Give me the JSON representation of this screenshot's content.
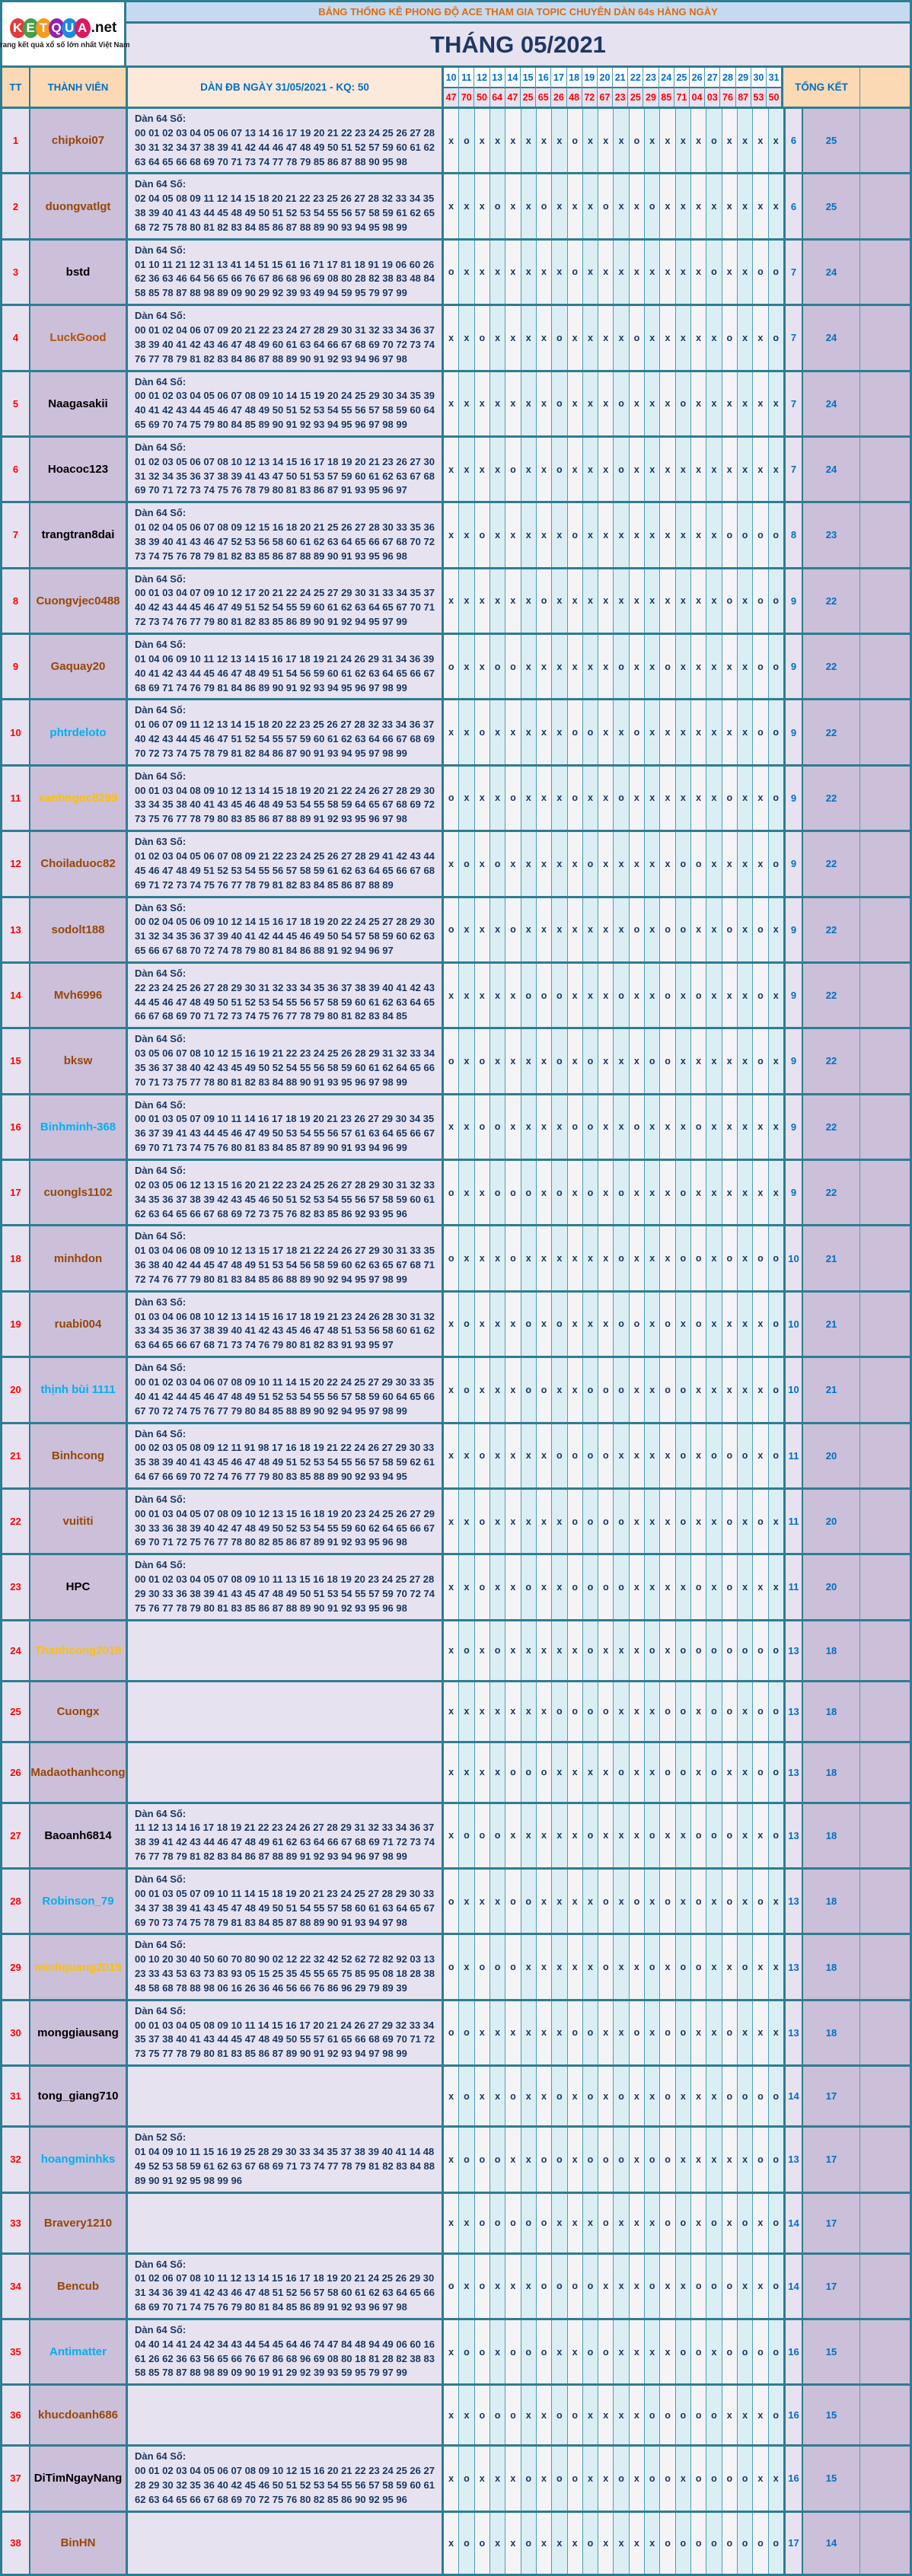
{
  "logo": {
    "letters": [
      {
        "ch": "K",
        "color": "#E23B3B"
      },
      {
        "ch": "E",
        "color": "#43A047"
      },
      {
        "ch": "T",
        "color": "#F59A23"
      },
      {
        "ch": "Q",
        "color": "#8E24AA"
      },
      {
        "ch": "U",
        "color": "#1E88E5"
      },
      {
        "ch": "A",
        "color": "#D81B60"
      }
    ],
    "suffix": ".net",
    "tagline": "Trang kết quả xổ số lớn nhất Việt Nam"
  },
  "banner": {
    "title": "BẢNG THỐNG KÊ PHONG ĐỘ ACE THAM GIA TOPIC CHUYÊN DÀN 64s HÀNG NGÀY",
    "month_title": "THÁNG 05/2021"
  },
  "table": {
    "tt_label": "TT",
    "member_label": "THÀNH VIÊN",
    "dan_header": "DÀN ĐB NGÀY 31/05/2021 - KQ: 50",
    "total_label": "TỔNG KẾT",
    "days": [
      "10",
      "11",
      "12",
      "13",
      "14",
      "15",
      "16",
      "17",
      "18",
      "19",
      "20",
      "21",
      "22",
      "23",
      "24",
      "25",
      "26",
      "27",
      "28",
      "29",
      "30",
      "31"
    ],
    "kq": [
      "47",
      "70",
      "50",
      "64",
      "47",
      "25",
      "65",
      "26",
      "48",
      "72",
      "67",
      "23",
      "25",
      "29",
      "85",
      "71",
      "04",
      "03",
      "76",
      "87",
      "53",
      "50"
    ],
    "members": [
      {
        "tt": "1",
        "name": "chipkoi07",
        "color": "#974706",
        "dan_title": "Dàn 64 Số:",
        "numbers": "00 01 02 03 04 05 06 07 13 14 16 17 19 20 21 22 23 24 25 26 27 28 30 31 32 34 37 38 39 41 42 44 46 47 48 49 50 51 52 57 59 60 61 62 63 64 65 66 68 69 70 71 73 74 77 78 79 85 86 87 88 90 95 98",
        "marks": "xoxxxxxxoxxxoxxxxoxxxx",
        "t1": "6",
        "t2": "25"
      },
      {
        "tt": "2",
        "name": "duongvatlgt",
        "color": "#974706",
        "dan_title": "Dàn 64 Số:",
        "numbers": "02 04 05 08 09 11 12 14 15 18 20 21 22 23 25 26 27 28 32 33 34 35 38 39 40 41 43 44 45 48 49 50 51 52 53 54 55 56 57 58 59 61 62 65 68 72 75 78 80 81 82 83 84 85 86 87 88 89 90 93 94 95 98 99",
        "marks": "xxxoxxoxxxoxxoxxxxxxxx",
        "t1": "6",
        "t2": "25"
      },
      {
        "tt": "3",
        "name": "bstd",
        "color": "#000000",
        "dan_title": "Dàn 64 Số:",
        "numbers": "01 10 11 21 12 31 13 41 14 51 15 61 16 71 17 81 18 91 19 06 60 26 62 36 63 46 64 56 65 66 76 67 86 68 96 69 08 80 28 82 38 83 48 84 58 85 78 87 88 98 89 09 90 29 92 39 93 49 94 59 95 79 97 99",
        "marks": "oxxxxxxxoxxxxxxxxoxxoo",
        "t1": "7",
        "t2": "24"
      },
      {
        "tt": "4",
        "name": "LuckGood",
        "color": "#B4540A",
        "dan_title": "Dàn 64 Số:",
        "numbers": "00 01 02 04 06 07 09 20 21 22 23 24 27 28 29 30 31 32 33 34 36 37 38 39 40 41 42 43 46 47 48 49 60 61 63 64 66 67 68 69 70 72 73 74 76 77 78 79 81 82 83 84 86 87 88 89 90 91 92 93 94 96 97 98",
        "marks": "xxoxxxxoxxxxoxxxxxoxxo",
        "t1": "7",
        "t2": "24"
      },
      {
        "tt": "5",
        "name": "Naagasakii",
        "color": "#000000",
        "dan_title": "Dàn 64 Số:",
        "numbers": "00 01 02 03 04 05 06 07 08 09 10 14 15 19 20 24 25 29 30 34 35 39 40 41 42 43 44 45 46 47 48 49 50 51 52 53 54 55 56 57 58 59 60 64 65 69 70 74 75 79 80 84 85 89 90 91 92 93 94 95 96 97 98 99",
        "marks": "xxxxxxxoxxxoxxxoxxxxxx",
        "t1": "7",
        "t2": "24"
      },
      {
        "tt": "6",
        "name": "Hoacoc123",
        "color": "#000000",
        "dan_title": "Dàn 64 Số:",
        "numbers": "01 02 03 05 06 07 08 10 12 13 14 15 16 17 18 19 20 21 23 26 27 30 31 32 34 35 36 37 38 39 41 43 47 50 51 53 57 59 60 61 62 63 67 68 69 70 71 72 73 74 75 76 78 79 80 81 83 86 87 91 93 95 96 97",
        "marks": "xxxxoxxoxxxoxxxxxxxxxx",
        "t1": "7",
        "t2": "24"
      },
      {
        "tt": "7",
        "name": "trangtran8dai",
        "color": "#000000",
        "dan_title": "Dàn 64 Số:",
        "numbers": "01 02 04 05 06 07 08 09 12 15 16 18 20 21 25 26 27 28 30 33 35 36 38 39 40 41 43 46 47 52 53 56 58 60 61 62 63 64 65 66 67 68 70 72 73 74 75 76 78 79 81 82 83 85 86 87 88 89 90 91 93 95 96 98",
        "marks": "xxoxxxxxoxxxxxxxxxoooo",
        "t1": "8",
        "t2": "23"
      },
      {
        "tt": "8",
        "name": "Cuongvjec0488",
        "color": "#974706",
        "dan_title": "Dàn 64 Số:",
        "numbers": "00 01 03 04 07 09 10 12 17 20 21 22 24 25 27 29 30 31 33 34 35 37 40 42 43 44 45 46 47 49 51 52 54 55 59 60 61 62 63 64 65 67 70 71 72 73 74 76 77 79 80 81 82 83 85 86 89 90 91 92 94 95 97 99",
        "marks": "xxxxxxoxxxxxxxxxxxoxoo",
        "t1": "9",
        "t2": "22"
      },
      {
        "tt": "9",
        "name": "Gaquay20",
        "color": "#974706",
        "dan_title": "Dàn 64 Số:",
        "numbers": "01 04 06 09 10 11 12 13 14 15 16 17 18 19 21 24 26 29 31 34 36 39 40 41 42 43 44 45 46 47 48 49 51 54 56 59 60 61 62 63 64 65 66 67 68 69 71 74 76 79 81 84 86 89 90 91 92 93 94 95 96 97 98 99",
        "marks": "oxxooxxxxxxoxxoxxxxxoo",
        "t1": "9",
        "t2": "22"
      },
      {
        "tt": "10",
        "name": "phtrdeloto",
        "color": "#00B0F0",
        "dan_title": "Dàn 64 Số:",
        "numbers": "01 06 07 09 11 12 13 14 15 18 20 22 23 25 26 27 28 32 33 34 36 37 40 42 43 44 45 46 47 51 52 54 55 57 59 60 61 62 63 64 66 67 68 69 70 72 73 74 75 78 79 81 82 84 86 87 90 91 93 94 95 97 98 99",
        "marks": "xxoxxxxxooxxoxxxxxxxoo",
        "t1": "9",
        "t2": "22"
      },
      {
        "tt": "11",
        "name": "xanhngoc8299",
        "color": "#FFC000",
        "dan_title": "Dàn 64 Số:",
        "numbers": "00 01 03 04 08 09 10 12 13 14 15 18 19 20 21 22 24 26 27 28 29 30 33 34 35 38 40 41 43 45 46 48 49 53 54 55 58 59 64 65 67 68 69 72 73 75 76 77 78 79 80 83 85 86 87 88 89 91 92 93 95 96 97 98",
        "marks": "oxxxoxxxoxxoxxxxxxoxxo",
        "t1": "9",
        "t2": "22"
      },
      {
        "tt": "12",
        "name": "Choiladuoc82",
        "color": "#974706",
        "dan_title": "Dàn 63 Số:",
        "numbers": "01 02 03 04 05 06 07 08 09 21 22 23 24 25 26 27 28 29 41 42 43 44 45 46 47 48 49 51 52 53 54 55 56 57 58 59 61 62 63 64 65 66 67 68 69 71 72 73 74 75 76 77 78 79 81 82 83 84 85 86 87 88 89",
        "marks": "xoxoxxxxxoxxxxxooxxxxo",
        "t1": "9",
        "t2": "22"
      },
      {
        "tt": "13",
        "name": "sodolt188",
        "color": "#974706",
        "dan_title": "Dàn 63 Số:",
        "numbers": "00 02 04 05 06 09 10 12 14 15 16 17 18 19 20 22 24 25 27 28 29 30 31 32 34 35 36 37 39 40 41 42 44 45 46 49 50 54 57 58 59 60 62 63 65 66 67 68 70 72 74 78 79 80 81 84 86 88 91 92 94 96 97",
        "marks": "oxxxoxxxxxxxoxooxxoxox",
        "t1": "9",
        "t2": "22"
      },
      {
        "tt": "14",
        "name": "Mvh6996",
        "color": "#974706",
        "dan_title": "Dàn 64 Số:",
        "numbers": "22 23 24 25 26 27 28 29 30 31 32 33 34 35 36 37 38 39 40 41 42 43 44 45 46 47 48 49 50 51 52 53 54 55 56 57 58 59 60 61 62 63 64 65 66 67 68 69 70 71 72 73 74 75 76 77 78 79 80 81 82 83 84 85",
        "marks": "xxxxxoooxxxoxxoxoxxxox",
        "t1": "9",
        "t2": "22"
      },
      {
        "tt": "15",
        "name": "bksw",
        "color": "#974706",
        "dan_title": "Dàn 64 Số:",
        "numbers": "03 05 06 07 08 10 12 15 16 19 21 22 23 24 25 26 28 29 31 32 33 34 35 36 37 38 40 42 43 45 49 50 52 54 55 56 58 59 60 61 62 64 65 66 70 71 73 75 77 78 80 81 82 83 84 88 90 91 93 95 96 97 98 99",
        "marks": "oxoxxxxoxoxxxooxxxxxox",
        "t1": "9",
        "t2": "22"
      },
      {
        "tt": "16",
        "name": "Binhminh-368",
        "color": "#00B0F0",
        "dan_title": "Dàn 64 Số:",
        "numbers": "00 01 03 05 07 09 10 11 14 16 17 18 19 20 21 23 26 27 29 30 34 35 36 37 39 41 43 44 45 46 47 49 50 53 54 55 56 57 61 63 64 65 66 67 69 70 71 73 74 75 76 80 81 83 84 85 87 89 90 91 93 94 96 99",
        "marks": "xxooxxxxooxxoxxxoxxxxx",
        "t1": "9",
        "t2": "22"
      },
      {
        "tt": "17",
        "name": "cuongls1102",
        "color": "#974706",
        "dan_title": "Dàn 64 Số:",
        "numbers": "02 03 05 06 12 13 15 16 20 21 22 23 24 25 26 27 28 29 30 31 32 33 34 35 36 37 38 39 42 43 45 46 50 51 52 53 54 55 56 57 58 59 60 61 62 63 64 65 66 67 68 69 72 73 75 76 82 83 85 86 92 93 95 96",
        "marks": "oxxoooxoxoxoxxxoxxxxxx",
        "t1": "9",
        "t2": "22"
      },
      {
        "tt": "18",
        "name": "minhdon",
        "color": "#974706",
        "dan_title": "Dàn 64 Số:",
        "numbers": "01 03 04 06 08 09 10 12 13 15 17 18 21 22 24 26 27 29 30 31 33 35 36 38 40 42 44 45 47 48 49 51 53 54 56 58 59 60 62 63 65 67 68 71 72 74 76 77 79 80 81 83 84 85 86 88 89 90 92 94 95 97 98 99",
        "marks": "oxxxoxxxxxxoxxxooxoxoo",
        "t1": "10",
        "t2": "21"
      },
      {
        "tt": "19",
        "name": "ruabi004",
        "color": "#974706",
        "dan_title": "Dàn 63 Số:",
        "numbers": "01 03 04 06 08 10 12 13 14 15 16 17 18 19 21 23 24 26 28 30 31 32 33 34 35 36 37 38 39 40 41 42 43 45 46 47 48 51 53 56 58 60 61 62 63 64 65 66 67 68 71 73 74 76 79 80 81 82 83 91 93 95 97",
        "marks": "xoxxxoxoxxxooxoxoxxxxo",
        "t1": "10",
        "t2": "21"
      },
      {
        "tt": "20",
        "name": "thịnh bùi 1111",
        "color": "#00B0F0",
        "dan_title": "Dàn 64 Số:",
        "numbers": "00 01 02 03 04 06 07 08 09 10 11 14 15 20 22 24 25 27 29 30 33 35 40 41 42 44 45 46 47 48 49 51 52 53 54 55 56 57 58 59 60 64 65 66 67 70 72 74 75 76 77 79 80 84 85 88 89 90 92 94 95 97 98 99",
        "marks": "xoxxxooxxoooxxooxxxxxo",
        "t1": "10",
        "t2": "21"
      },
      {
        "tt": "21",
        "name": "Binhcong",
        "color": "#974706",
        "dan_title": "Dàn 64 Số:",
        "numbers": "00 02 03 05 08 09 12 11 91 98 17 16 18 19 21 22 24 26 27 29 30 33 35 38 39 40 41 43 45 46 47 48 49 51 52 53 54 55 56 57 58 59 62 61 64 67 66 69 70 72 74 76 77 79 80 83 85 88 89 90 92 93 94 95",
        "marks": "xxoxxxxooooxxxxoxoooxo",
        "t1": "11",
        "t2": "20"
      },
      {
        "tt": "22",
        "name": "vuititi",
        "color": "#974706",
        "dan_title": "Dàn 64 Số:",
        "numbers": "00 01 03 04 05 07 08 09 10 12 13 15 16 18 19 20 23 24 25 26 27 29 30 33 36 38 39 40 42 47 48 49 50 52 53 54 55 59 60 62 64 65 66 67 69 70 71 72 75 76 77 78 80 82 85 86 87 89 91 92 93 95 96 98",
        "marks": "xxoxxxxxooooxxxoxxoxox",
        "t1": "11",
        "t2": "20"
      },
      {
        "tt": "23",
        "name": "HPC",
        "color": "#000000",
        "dan_title": "Dàn 64 Số:",
        "numbers": "00 01 02 03 04 05 07 08 09 10 11 13 15 16 18 19 20 23 24 25 27 28 29 30 33 36 38 39 41 43 45 47 48 49 50 51 53 54 55 57 59 70 72 74 75 76 77 78 79 80 81 83 85 86 87 88 89 90 91 92 93 95 96 98",
        "marks": "xxoxxoxxooooxxxxoxoxxx",
        "t1": "11",
        "t2": "20"
      },
      {
        "tt": "24",
        "name": "Thanhcong2018",
        "color": "#FFC000",
        "dan_title": "",
        "numbers": "",
        "marks": "xoxoxxxxxoxxxoxooooooo",
        "t1": "13",
        "t2": "18"
      },
      {
        "tt": "25",
        "name": "Cuongx",
        "color": "#974706",
        "dan_title": "",
        "numbers": "",
        "marks": "xxxxxxxooooxxxooxooxoo",
        "t1": "13",
        "t2": "18"
      },
      {
        "tt": "26",
        "name": "Madaothanhcong",
        "color": "#974706",
        "dan_title": "",
        "numbers": "",
        "marks": "xxxxoooxxxxoxxooxoxxoo",
        "t1": "13",
        "t2": "18"
      },
      {
        "tt": "27",
        "name": "Baoanh6814",
        "color": "#000000",
        "dan_title": "Dàn 64 Số:",
        "numbers": "11 12 13 14 16 17 18 19 21 22 23 24 26 27 28 29 31 32 33 34 36 37 38 39 41 42 43 44 46 47 48 49 61 62 63 64 66 67 68 69 71 72 73 74 76 77 78 79 81 82 83 84 86 87 88 89 91 92 93 94 96 97 98 99",
        "marks": "xoooxxxxxoxxxoxxoooxxo",
        "t1": "13",
        "t2": "18"
      },
      {
        "tt": "28",
        "name": "Robinson_79",
        "color": "#00B0F0",
        "dan_title": "Dàn 64 Số:",
        "numbers": "00 01 03 05 07 09 10 11 14 15 18 19 20 21 23 24 25 27 28 29 30 33 34 37 38 39 41 43 45 47 48 49 50 51 54 55 57 58 60 61 63 64 65 67 69 70 73 74 75 78 79 81 83 84 85 87 88 89 90 91 93 94 97 98",
        "marks": "oxxxooxxxxoxoxoxoxoxox",
        "t1": "13",
        "t2": "18"
      },
      {
        "tt": "29",
        "name": "minhquang2015",
        "color": "#FFC000",
        "dan_title": "Dàn 64 Số:",
        "numbers": "00 10 20 30 40 50 60 70 80 90 02 12 22 32 42 52 62 72 82 92 03 13 23 33 43 53 63 73 83 93 05 15 25 35 45 55 65 75 85 95 08 18 28 38 48 58 68 78 88 98 06 16 26 36 46 56 66 76 86 96 29 79 89 39",
        "marks": "oxoooxxxxxoxxoxooxxoxx",
        "t1": "13",
        "t2": "18"
      },
      {
        "tt": "30",
        "name": "monggiausang",
        "color": "#000000",
        "dan_title": "Dàn 64 Số:",
        "numbers": "00 01 03 04 05 08 09 10 11 14 15 16 17 20 21 24 26 27 29 32 33 34 35 37 38 40 41 43 44 45 47 48 49 50 55 57 61 65 66 68 69 70 71 72 73 75 77 78 79 80 81 83 85 86 87 89 90 91 92 93 94 97 98 99",
        "marks": "ooxxxxxxooxxoxooxxoxxx",
        "t1": "13",
        "t2": "18"
      },
      {
        "tt": "31",
        "name": "tong_giang710",
        "color": "#000000",
        "dan_title": "",
        "numbers": "",
        "marks": "xoxxoxxoxoxoxxoxxxoooo",
        "t1": "14",
        "t2": "17"
      },
      {
        "tt": "32",
        "name": "hoangminhks",
        "color": "#00B0F0",
        "dan_title": "Dàn 52 Số:",
        "numbers": "01 04 09 10 11 15 16 19 25 28 29 30 33 34 35 37 38 39 40 41 14 48 49 52 53 58 59 61 62 63 67 68 69 71 73 74 77 78 79 81 82 83 84 88 89 90 91 92 95 98 99 96",
        "marks": "xoooxxooxoooxooxxxxxoo",
        "t1": "13",
        "t2": "17"
      },
      {
        "tt": "33",
        "name": "Bravery1210",
        "color": "#974706",
        "dan_title": "",
        "numbers": "",
        "marks": "xxoooooxxxoxxxooxoxoxo",
        "t1": "14",
        "t2": "17"
      },
      {
        "tt": "34",
        "name": "Bencub",
        "color": "#974706",
        "dan_title": "Dàn 64 Số:",
        "numbers": "01 02 06 07 08 10 11 12 13 14 15 16 17 18 19 20 21 24 25 26 29 30 31 34 36 39 41 42 43 46 47 48 51 52 56 57 58 60 61 62 63 64 65 66 68 69 70 71 74 75 76 79 80 81 84 85 86 89 91 92 93 96 97 98",
        "marks": "oxoxxxooooxxxoxxoooxxo",
        "t1": "14",
        "t2": "17"
      },
      {
        "tt": "35",
        "name": "Antimatter",
        "color": "#00B0F0",
        "dan_title": "Dàn 64 Số:",
        "numbers": "04 40 14 41 24 42 34 43 44 54 45 64 46 74 47 84 48 94 49 06 60 16 61 26 62 36 63 56 65 66 76 67 86 68 96 69 08 80 18 81 28 82 38 83 58 85 78 87 88 98 89 09 90 19 91 29 92 39 93 59 95 79 97 99",
        "marks": "xooxoooxxooxxxxooxoooo",
        "t1": "16",
        "t2": "15"
      },
      {
        "tt": "36",
        "name": "khucdoanh686",
        "color": "#974706",
        "dan_title": "",
        "numbers": "",
        "marks": "xxoooxxooxxxxoooooxxxo",
        "t1": "16",
        "t2": "15"
      },
      {
        "tt": "37",
        "name": "DiTimNgayNang",
        "color": "#000000",
        "dan_title": "Dàn 64 Số:",
        "numbers": "00 01 02 03 04 05 06 07 08 09 10 12 15 16 20 21 22 23 24 25 26 27 28 29 30 32 35 36 40 42 45 46 50 51 52 53 54 55 56 57 58 59 60 61 62 63 64 65 66 67 68 69 70 72 75 76 80 82 85 86 90 92 95 96",
        "marks": "xoxxxoxooxxoxooxooooxx",
        "t1": "16",
        "t2": "15"
      },
      {
        "tt": "38",
        "name": "BinHN",
        "color": "#974706",
        "dan_title": "",
        "numbers": "",
        "marks": "xooxxoxxxoxxxxoooooooo",
        "t1": "17",
        "t2": "14"
      }
    ]
  }
}
